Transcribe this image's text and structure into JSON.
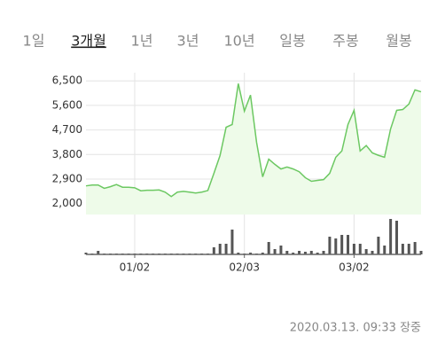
{
  "tabs": [
    "1일",
    "3개월",
    "1년",
    "3년",
    "10년",
    "일봉",
    "주봉",
    "월봉"
  ],
  "selected_tab": 1,
  "chart_data": {
    "type": "line",
    "categories": [
      null,
      null,
      null,
      null,
      null,
      null,
      null,
      null,
      "01/02",
      null,
      null,
      null,
      null,
      null,
      null,
      null,
      null,
      null,
      null,
      null,
      null,
      null,
      null,
      null,
      null,
      null,
      "02/03",
      null,
      null,
      null,
      null,
      null,
      null,
      null,
      null,
      null,
      null,
      null,
      null,
      null,
      null,
      null,
      null,
      null,
      "03/02",
      null,
      null,
      null,
      null,
      null,
      null,
      null,
      null,
      null,
      null,
      null
    ],
    "series": [
      {
        "values": [
          2650,
          2680,
          2680,
          2560,
          2620,
          2700,
          2600,
          2600,
          2580,
          2470,
          2490,
          2490,
          2500,
          2420,
          2260,
          2420,
          2450,
          2420,
          2390,
          2420,
          2480,
          3110,
          3760,
          4800,
          4900,
          6400,
          5390,
          5980,
          4250,
          2980,
          3630,
          3440,
          3270,
          3340,
          3270,
          3170,
          2950,
          2820,
          2850,
          2880,
          3110,
          3700,
          3930,
          4900,
          5420,
          3930,
          4130,
          3860,
          3770,
          3700,
          4740,
          5420,
          5450,
          5650,
          6170,
          6100
        ],
        "color": "#6cc862"
      },
      {
        "values": [
          2,
          1,
          4,
          1,
          1,
          1,
          1,
          1,
          1,
          1,
          1,
          1,
          1,
          1,
          1,
          1,
          1,
          1,
          1,
          1,
          1,
          8,
          12,
          12,
          28,
          2,
          1,
          2,
          1,
          2,
          14,
          6,
          10,
          4,
          2,
          4,
          3,
          4,
          2,
          4,
          20,
          18,
          22,
          22,
          12,
          12,
          6,
          4,
          20,
          10,
          40,
          38,
          12,
          12,
          14,
          4
        ],
        "color": "#555555",
        "axis": "y2"
      }
    ],
    "ylim": [
      1600,
      6800
    ],
    "yticks": [
      {
        "value": 2000,
        "label": "2,000"
      },
      {
        "value": 2900,
        "label": "2,900"
      },
      {
        "value": 3800,
        "label": "3,800"
      },
      {
        "value": 4700,
        "label": "4,700"
      },
      {
        "value": 5600,
        "label": "5,600"
      },
      {
        "value": 6500,
        "label": "6,500"
      }
    ],
    "y2lim": [
      0,
      42
    ],
    "grid": true,
    "timestamp": "2020.03.13. 09:33 장중"
  }
}
